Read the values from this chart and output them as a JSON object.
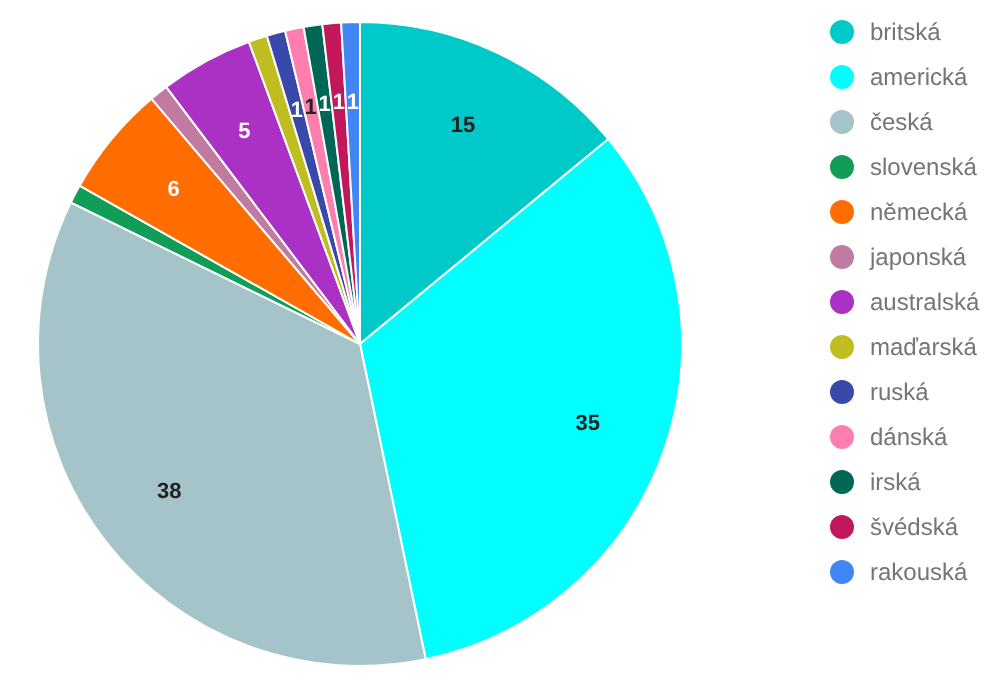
{
  "chart_data": {
    "type": "pie",
    "categories": [
      "britská",
      "americká",
      "česká",
      "slovenská",
      "německá",
      "japonská",
      "australská",
      "maďarská",
      "ruská",
      "dánská",
      "irská",
      "švédská",
      "rakouská"
    ],
    "values": [
      15,
      35,
      38,
      1,
      6,
      1,
      5,
      1,
      1,
      1,
      1,
      1,
      1
    ],
    "colors": [
      "#00c9c9",
      "#00ffff",
      "#a4c4ca",
      "#0f9d58",
      "#ff6d00",
      "#c27ba0",
      "#ab30c4",
      "#c0bd21",
      "#3949ab",
      "#ff7eb0",
      "#006655",
      "#c2185b",
      "#4285f4"
    ],
    "value_labels": [
      "15",
      "35",
      "38",
      null,
      "6",
      null,
      "5",
      null,
      "1",
      "1",
      "1",
      "1",
      "1"
    ],
    "legend": "right"
  }
}
